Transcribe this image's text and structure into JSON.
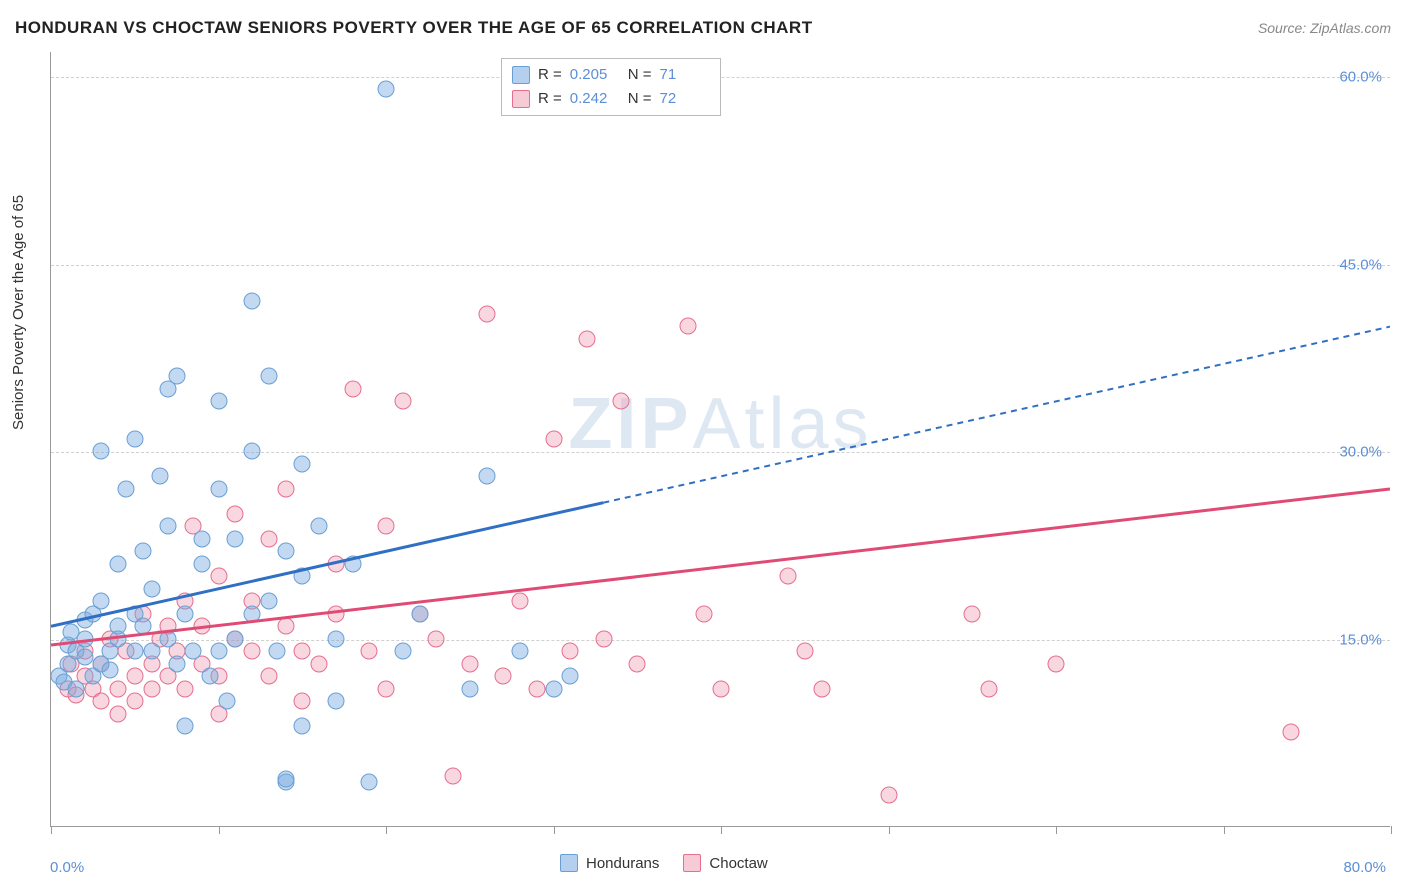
{
  "title": "HONDURAN VS CHOCTAW SENIORS POVERTY OVER THE AGE OF 65 CORRELATION CHART",
  "source_prefix": "Source: ",
  "source": "ZipAtlas.com",
  "y_axis_label": "Seniors Poverty Over the Age of 65",
  "watermark_bold": "ZIP",
  "watermark_rest": "Atlas",
  "chart": {
    "type": "scatter",
    "xlim": [
      0,
      80
    ],
    "ylim": [
      0,
      62
    ],
    "x_ticks": [
      0,
      10,
      20,
      30,
      40,
      50,
      60,
      70,
      80
    ],
    "x_tick_labels": {
      "0": "0.0%",
      "80": "80.0%"
    },
    "y_gridlines": [
      15,
      30,
      45,
      60
    ],
    "y_tick_labels": {
      "15": "15.0%",
      "30": "30.0%",
      "45": "45.0%",
      "60": "60.0%"
    },
    "background_color": "#ffffff",
    "grid_color": "#d0d0d0",
    "axis_color": "#999999",
    "label_fontsize": 15,
    "tick_color": "#5b8fd6",
    "series": {
      "hondurans": {
        "label": "Hondurans",
        "color_fill": "rgba(120,170,225,0.45)",
        "color_stroke": "#6a9fd4",
        "trend_color": "#2f6fc4",
        "trend": {
          "x1": 0,
          "y1": 16,
          "x2": 80,
          "y2": 40,
          "solid_until_x": 33
        },
        "points": [
          [
            0.5,
            12
          ],
          [
            0.8,
            11.5
          ],
          [
            1,
            13
          ],
          [
            1,
            14.5
          ],
          [
            1.2,
            15.5
          ],
          [
            1.5,
            11
          ],
          [
            1.5,
            14
          ],
          [
            2,
            13.5
          ],
          [
            2,
            16.5
          ],
          [
            2,
            15
          ],
          [
            2.5,
            12
          ],
          [
            2.5,
            17
          ],
          [
            3,
            13
          ],
          [
            3,
            18
          ],
          [
            3,
            30
          ],
          [
            3.5,
            14
          ],
          [
            3.5,
            12.5
          ],
          [
            4,
            16
          ],
          [
            4,
            15
          ],
          [
            4,
            21
          ],
          [
            4.5,
            27
          ],
          [
            5,
            14
          ],
          [
            5,
            17
          ],
          [
            5,
            31
          ],
          [
            5.5,
            22
          ],
          [
            5.5,
            16
          ],
          [
            6,
            19
          ],
          [
            6,
            14
          ],
          [
            6.5,
            28
          ],
          [
            7,
            15
          ],
          [
            7,
            24
          ],
          [
            7,
            35
          ],
          [
            7.5,
            13
          ],
          [
            7.5,
            36
          ],
          [
            8,
            17
          ],
          [
            8,
            8
          ],
          [
            8.5,
            14
          ],
          [
            9,
            23
          ],
          [
            9,
            21
          ],
          [
            9.5,
            12
          ],
          [
            10,
            14
          ],
          [
            10,
            27
          ],
          [
            10,
            34
          ],
          [
            10.5,
            10
          ],
          [
            11,
            15
          ],
          [
            11,
            23
          ],
          [
            12,
            17
          ],
          [
            12,
            30
          ],
          [
            12,
            42
          ],
          [
            13,
            18
          ],
          [
            13,
            36
          ],
          [
            13.5,
            14
          ],
          [
            14,
            22
          ],
          [
            14,
            3.5
          ],
          [
            14,
            3.8
          ],
          [
            15,
            20
          ],
          [
            15,
            8
          ],
          [
            15,
            29
          ],
          [
            16,
            24
          ],
          [
            17,
            15
          ],
          [
            17,
            10
          ],
          [
            18,
            21
          ],
          [
            19,
            3.5
          ],
          [
            20,
            59
          ],
          [
            21,
            14
          ],
          [
            22,
            17
          ],
          [
            25,
            11
          ],
          [
            26,
            28
          ],
          [
            28,
            14
          ],
          [
            30,
            11
          ],
          [
            31,
            12
          ]
        ]
      },
      "choctaw": {
        "label": "Choctaw",
        "color_fill": "rgba(235,140,165,0.35)",
        "color_stroke": "#e56f8f",
        "trend_color": "#e04a74",
        "trend": {
          "x1": 0,
          "y1": 14.5,
          "x2": 80,
          "y2": 27,
          "solid_until_x": 80
        },
        "points": [
          [
            1,
            11
          ],
          [
            1.2,
            13
          ],
          [
            1.5,
            10.5
          ],
          [
            2,
            12
          ],
          [
            2,
            14
          ],
          [
            2.5,
            11
          ],
          [
            3,
            13
          ],
          [
            3,
            10
          ],
          [
            3.5,
            15
          ],
          [
            4,
            11
          ],
          [
            4,
            9
          ],
          [
            4.5,
            14
          ],
          [
            5,
            12
          ],
          [
            5,
            10
          ],
          [
            5.5,
            17
          ],
          [
            6,
            13
          ],
          [
            6,
            11
          ],
          [
            6.5,
            15
          ],
          [
            7,
            16
          ],
          [
            7,
            12
          ],
          [
            7.5,
            14
          ],
          [
            8,
            18
          ],
          [
            8,
            11
          ],
          [
            8.5,
            24
          ],
          [
            9,
            13
          ],
          [
            9,
            16
          ],
          [
            10,
            12
          ],
          [
            10,
            20
          ],
          [
            10,
            9
          ],
          [
            11,
            15
          ],
          [
            11,
            25
          ],
          [
            12,
            14
          ],
          [
            12,
            18
          ],
          [
            13,
            12
          ],
          [
            13,
            23
          ],
          [
            14,
            16
          ],
          [
            14,
            27
          ],
          [
            15,
            14
          ],
          [
            15,
            10
          ],
          [
            16,
            13
          ],
          [
            17,
            21
          ],
          [
            17,
            17
          ],
          [
            18,
            35
          ],
          [
            19,
            14
          ],
          [
            20,
            24
          ],
          [
            20,
            11
          ],
          [
            21,
            34
          ],
          [
            22,
            17
          ],
          [
            23,
            15
          ],
          [
            24,
            4
          ],
          [
            25,
            13
          ],
          [
            26,
            41
          ],
          [
            27,
            12
          ],
          [
            28,
            18
          ],
          [
            29,
            11
          ],
          [
            30,
            31
          ],
          [
            31,
            14
          ],
          [
            32,
            39
          ],
          [
            33,
            15
          ],
          [
            34,
            34
          ],
          [
            35,
            13
          ],
          [
            38,
            40
          ],
          [
            39,
            17
          ],
          [
            40,
            11
          ],
          [
            44,
            20
          ],
          [
            45,
            14
          ],
          [
            46,
            11
          ],
          [
            50,
            2.5
          ],
          [
            55,
            17
          ],
          [
            56,
            11
          ],
          [
            60,
            13
          ],
          [
            74,
            7.5
          ]
        ]
      }
    }
  },
  "legend_stats": {
    "rows": [
      {
        "swatch": "blue",
        "r_label": "R =",
        "r": "0.205",
        "n_label": "N =",
        "n": "71"
      },
      {
        "swatch": "pink",
        "r_label": "R =",
        "r": "0.242",
        "n_label": "N =",
        "n": "72"
      }
    ]
  },
  "legend_bottom": [
    {
      "swatch": "blue",
      "label": "Hondurans"
    },
    {
      "swatch": "pink",
      "label": "Choctaw"
    }
  ]
}
